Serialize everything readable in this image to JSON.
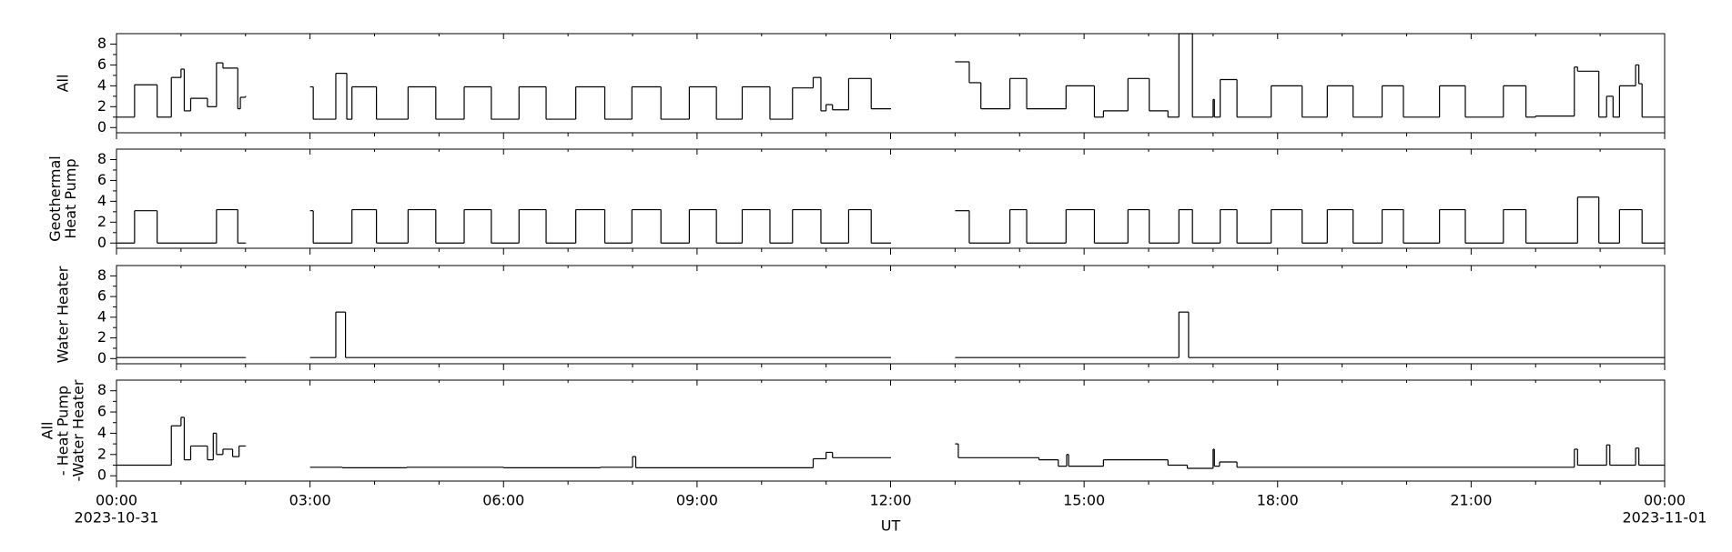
{
  "chart_data": [
    {
      "type": "line",
      "ylabel": [
        "All"
      ],
      "xlim": [
        0,
        24
      ],
      "ylim": [
        -0.5,
        9
      ],
      "yticks": [
        0,
        2,
        4,
        6,
        8
      ],
      "step": true,
      "series": [
        {
          "color": "#000000",
          "x": [
            0,
            0.28,
            0.63,
            0.85,
            1.0,
            1.05,
            1.15,
            1.41,
            1.55,
            1.65,
            1.88,
            1.92,
            2.0,
            2.5,
            3.0,
            3.05,
            3.4,
            3.57,
            3.65,
            4.03,
            4.52,
            4.95,
            5.39,
            5.81,
            6.24,
            6.66,
            7.12,
            7.57,
            7.99,
            8.44,
            8.88,
            9.3,
            9.7,
            10.13,
            10.48,
            10.8,
            10.92,
            11.0,
            11.1,
            11.35,
            11.7,
            12.0,
            12.5,
            13.0,
            13.22,
            13.4,
            13.85,
            14.11,
            14.72,
            15.16,
            15.3,
            15.68,
            16.01,
            16.3,
            16.47,
            16.68,
            17.0,
            17.02,
            17.11,
            17.37,
            17.9,
            18.38,
            18.77,
            19.17,
            19.62,
            19.95,
            20.51,
            20.91,
            21.5,
            21.85,
            22.0,
            22.6,
            22.65,
            22.98,
            23.1,
            23.2,
            23.3,
            23.55,
            23.6,
            23.65,
            24.0
          ],
          "values": [
            1.0,
            4.1,
            1.0,
            4.8,
            5.6,
            1.6,
            2.8,
            2.0,
            6.2,
            5.7,
            1.8,
            2.9,
            3.0,
            null,
            3.9,
            0.8,
            5.2,
            0.8,
            3.9,
            0.8,
            3.9,
            0.8,
            3.9,
            0.8,
            3.9,
            0.8,
            3.9,
            0.8,
            3.9,
            0.8,
            3.9,
            0.8,
            3.9,
            0.8,
            3.8,
            4.8,
            1.6,
            2.2,
            1.7,
            4.7,
            1.8,
            1.8,
            null,
            6.3,
            4.3,
            1.8,
            4.7,
            1.8,
            4.0,
            1.0,
            1.6,
            4.7,
            1.6,
            1.0,
            9.0,
            1.0,
            2.7,
            1.0,
            4.6,
            1.0,
            4.0,
            1.0,
            4.0,
            1.0,
            4.0,
            1.0,
            4.0,
            1.0,
            4.0,
            1.0,
            1.1,
            5.8,
            5.4,
            1.0,
            3.0,
            1.0,
            4.0,
            6.0,
            4.2,
            1.0,
            1.0
          ]
        }
      ]
    },
    {
      "type": "line",
      "ylabel": [
        "Geothermal",
        "Heat Pump"
      ],
      "xlim": [
        0,
        24
      ],
      "ylim": [
        -0.5,
        9
      ],
      "yticks": [
        0,
        2,
        4,
        6,
        8
      ],
      "step": true,
      "series": [
        {
          "color": "#000000",
          "x": [
            0,
            0.28,
            0.63,
            1.55,
            1.88,
            2.0,
            2.5,
            3.0,
            3.05,
            3.65,
            4.03,
            4.52,
            4.95,
            5.39,
            5.81,
            6.24,
            6.66,
            7.12,
            7.57,
            7.99,
            8.44,
            8.88,
            9.3,
            9.7,
            10.13,
            10.48,
            10.92,
            11.35,
            11.7,
            12.0,
            12.5,
            13.0,
            13.22,
            13.85,
            14.11,
            14.72,
            15.16,
            15.68,
            16.01,
            16.47,
            16.68,
            17.11,
            17.37,
            17.9,
            18.38,
            18.77,
            19.17,
            19.62,
            19.95,
            20.51,
            20.91,
            21.5,
            21.85,
            22.65,
            22.98,
            23.3,
            23.65,
            24.0
          ],
          "values": [
            0,
            3.1,
            0,
            3.2,
            0,
            0,
            null,
            3.1,
            0,
            3.2,
            0,
            3.2,
            0,
            3.2,
            0,
            3.2,
            0,
            3.2,
            0,
            3.2,
            0,
            3.2,
            0,
            3.2,
            0,
            3.2,
            0,
            3.2,
            0,
            0,
            null,
            3.1,
            0,
            3.2,
            0,
            3.2,
            0,
            3.2,
            0,
            3.2,
            0,
            3.2,
            0,
            3.2,
            0,
            3.2,
            0,
            3.2,
            0,
            3.2,
            0,
            3.2,
            0,
            4.4,
            0,
            3.2,
            0,
            0
          ]
        }
      ]
    },
    {
      "type": "line",
      "ylabel": [
        "Water Heater"
      ],
      "xlim": [
        0,
        24
      ],
      "ylim": [
        -0.5,
        9
      ],
      "yticks": [
        0,
        2,
        4,
        6,
        8
      ],
      "step": true,
      "series": [
        {
          "color": "#000000",
          "x": [
            0,
            2.0,
            2.5,
            3.0,
            3.4,
            3.55,
            12.0,
            12.5,
            13.0,
            16.47,
            16.62,
            24.0
          ],
          "values": [
            0.1,
            0.1,
            null,
            0.1,
            4.5,
            0.1,
            0.1,
            null,
            0.1,
            4.5,
            0.1,
            0.1
          ]
        }
      ]
    },
    {
      "type": "line",
      "ylabel": [
        "All",
        "- Heat Pump",
        "-Water Heater"
      ],
      "xlim": [
        0,
        24
      ],
      "ylim": [
        -0.5,
        9
      ],
      "yticks": [
        0,
        2,
        4,
        6,
        8
      ],
      "step": true,
      "xticks": [
        {
          "value": 0,
          "label": "00:00"
        },
        {
          "value": 3,
          "label": "03:00"
        },
        {
          "value": 6,
          "label": "06:00"
        },
        {
          "value": 9,
          "label": "09:00"
        },
        {
          "value": 12,
          "label": "12:00"
        },
        {
          "value": 15,
          "label": "15:00"
        },
        {
          "value": 18,
          "label": "18:00"
        },
        {
          "value": 21,
          "label": "21:00"
        },
        {
          "value": 24,
          "label": "00:00"
        }
      ],
      "xlabel": "UT",
      "annotations": [
        {
          "x": 0,
          "text": "2023-10-31"
        },
        {
          "x": 24,
          "text": "2023-11-01"
        }
      ],
      "series": [
        {
          "color": "#000000",
          "x": [
            0,
            0.85,
            1.0,
            1.05,
            1.15,
            1.41,
            1.5,
            1.55,
            1.65,
            1.8,
            1.9,
            2.0,
            2.5,
            3.0,
            3.5,
            4.5,
            6.0,
            7.5,
            8.0,
            8.05,
            10.8,
            11.0,
            11.1,
            12.0,
            12.5,
            13.0,
            13.05,
            14.3,
            14.6,
            14.73,
            14.76,
            15.3,
            16.3,
            16.6,
            17.0,
            17.02,
            17.1,
            17.37,
            22.6,
            22.65,
            23.1,
            23.15,
            23.55,
            23.6,
            24.0
          ],
          "values": [
            1.0,
            4.7,
            5.5,
            1.5,
            2.8,
            1.5,
            4.0,
            2.0,
            2.5,
            1.8,
            2.8,
            2.8,
            null,
            0.8,
            0.75,
            0.8,
            0.75,
            0.8,
            1.8,
            0.75,
            1.6,
            2.2,
            1.7,
            1.7,
            null,
            3.0,
            1.7,
            1.5,
            0.9,
            2.0,
            0.9,
            1.5,
            1.0,
            0.7,
            2.5,
            0.9,
            1.3,
            0.8,
            2.5,
            1.0,
            2.9,
            1.0,
            2.6,
            1.0,
            1.0
          ]
        }
      ]
    }
  ]
}
